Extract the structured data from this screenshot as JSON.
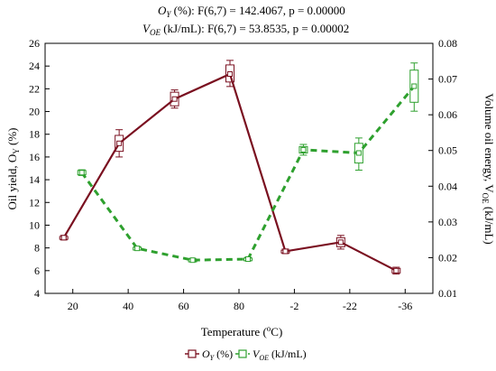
{
  "header": {
    "line1_var": "O",
    "line1_sub": "Y",
    "line1_rest": " (%):    F(6,7) = 142.4067, p = 0.00000",
    "line2_var": "V",
    "line2_sub": "OE",
    "line2_rest": " (kJ/mL):    F(6,7) = 53.8535, p = 0.00002"
  },
  "chart_data": {
    "type": "line",
    "categories": [
      "24",
      "44",
      "64",
      "84",
      "-2",
      "-22",
      "-36"
    ],
    "x_tick_labels": [
      "20",
      "40",
      "60",
      "80",
      "-2",
      "-22",
      "-36"
    ],
    "xlabel": "Temperature (",
    "xlabel_sup": "o",
    "xlabel_end": "C)",
    "ylabel_left": "Oil yield, O",
    "ylabel_left_sub": "Y",
    "ylabel_left_end": " (%)",
    "ylabel_right": "Volume oil energy, V",
    "ylabel_right_sub": "OE",
    "ylabel_right_end": " (kJ/mL)",
    "ylim_left": [
      4,
      26
    ],
    "yticks_left": [
      "4",
      "6",
      "8",
      "10",
      "12",
      "14",
      "16",
      "18",
      "20",
      "22",
      "24",
      "26"
    ],
    "ylim_right": [
      0.01,
      0.08
    ],
    "yticks_right": [
      "0.01",
      "0.02",
      "0.03",
      "0.04",
      "0.05",
      "0.06",
      "0.07",
      "0.08"
    ],
    "grid": false,
    "legend_position": "bottom-center",
    "series": [
      {
        "name_var": "O",
        "name_sub": "Y",
        "name_rest": " (%)",
        "axis": "left",
        "color": "#7a1020",
        "dashed": false,
        "values": [
          8.9,
          17.2,
          21.1,
          23.3,
          7.7,
          8.5,
          6.0
        ],
        "box_low": [
          8.8,
          16.5,
          20.5,
          22.6,
          7.6,
          8.1,
          5.8
        ],
        "box_high": [
          9.0,
          17.9,
          21.7,
          24.1,
          7.8,
          8.9,
          6.2
        ],
        "whisker_low": [
          8.7,
          16.0,
          20.3,
          22.2,
          7.5,
          7.9,
          5.7
        ],
        "whisker_high": [
          9.1,
          18.4,
          21.9,
          24.5,
          7.9,
          9.1,
          6.3
        ]
      },
      {
        "name_var": "V",
        "name_sub": "OE",
        "name_rest": " (kJ/mL)",
        "axis": "right",
        "color": "#2ea02e",
        "dashed": true,
        "values": [
          0.0438,
          0.0226,
          0.0193,
          0.0196,
          0.0502,
          0.0493,
          0.068
        ],
        "box_low": [
          0.0432,
          0.0223,
          0.019,
          0.0193,
          0.0493,
          0.0465,
          0.0635
        ],
        "box_high": [
          0.0444,
          0.0229,
          0.0196,
          0.0199,
          0.0511,
          0.052,
          0.0725
        ],
        "whisker_low": [
          0.043,
          0.0221,
          0.0188,
          0.0191,
          0.0487,
          0.0445,
          0.061
        ],
        "whisker_high": [
          0.0446,
          0.0231,
          0.0198,
          0.0201,
          0.0517,
          0.0535,
          0.0745
        ]
      }
    ]
  }
}
